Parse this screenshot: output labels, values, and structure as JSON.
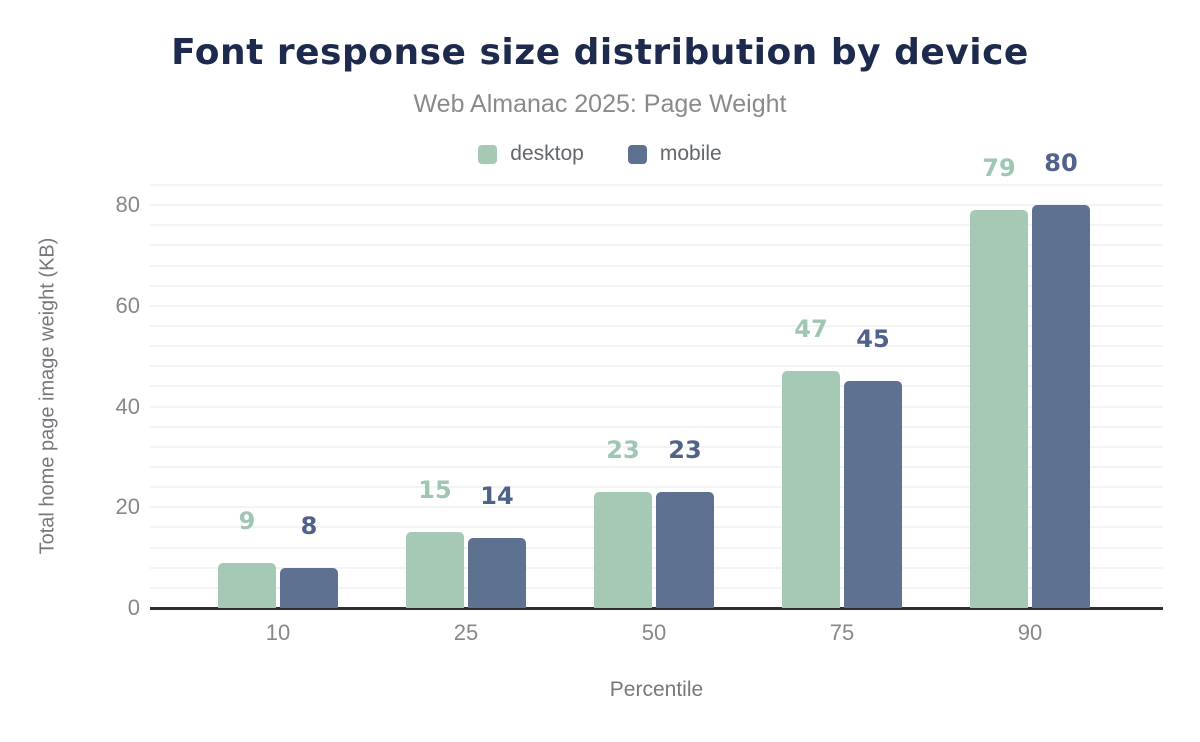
{
  "chart_data": {
    "type": "bar",
    "title": "Font response size distribution by device",
    "subtitle": "Web Almanac 2025: Page Weight",
    "xlabel": "Percentile",
    "ylabel": "Total home page image weight (KB)",
    "categories": [
      "10",
      "25",
      "50",
      "75",
      "90"
    ],
    "series": [
      {
        "name": "desktop",
        "color": "#a6c9b6",
        "label_color": "#9fc6b2",
        "values": [
          9,
          15,
          23,
          47,
          79
        ]
      },
      {
        "name": "mobile",
        "color": "#5f7190",
        "label_color": "#51628a",
        "values": [
          8,
          14,
          23,
          45,
          80
        ]
      }
    ],
    "yticks": [
      0,
      20,
      40,
      60,
      80
    ],
    "ylim": [
      0,
      84
    ],
    "minor_grid_step": 4,
    "grid": "on",
    "legend_position": "top",
    "show_data_labels": true
  },
  "colors": {
    "background": "#ffffff",
    "title_text": "#1e2a4d",
    "subtitle_text": "#8a8a8a",
    "legend_text": "#63676c",
    "tick_text": "#85878a",
    "axis_title_text": "#75787d",
    "axis_line": "#2e2e2e",
    "gridline": "#f4f4f4"
  }
}
